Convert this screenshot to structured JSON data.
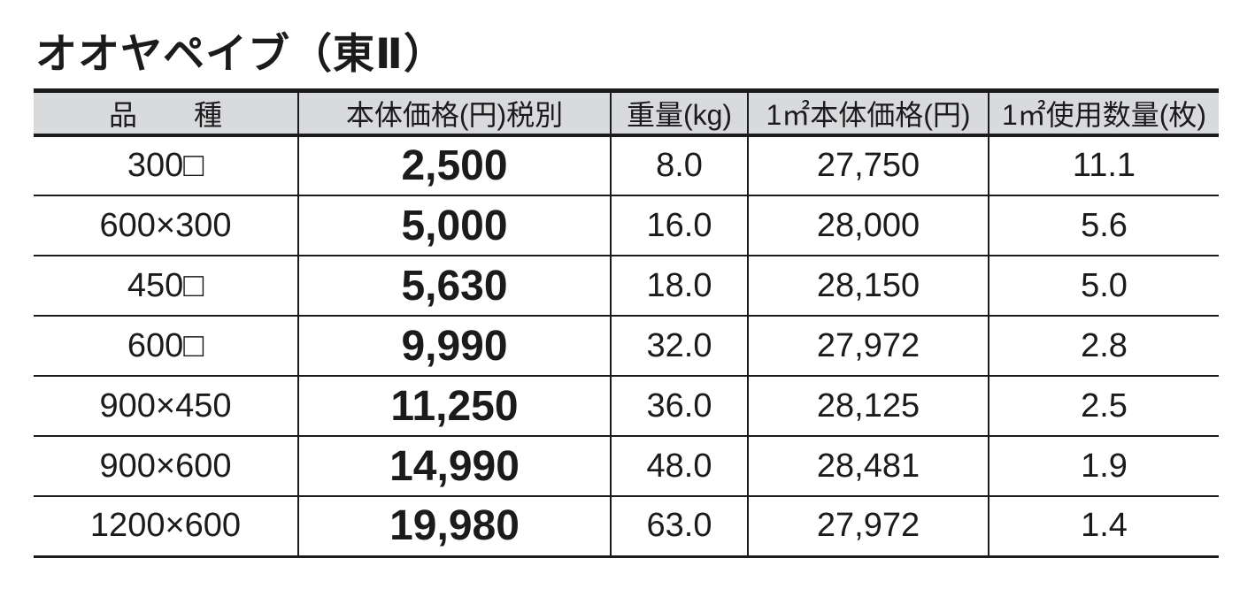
{
  "page": {
    "title": "オオヤペイブ（東Ⅱ）"
  },
  "table": {
    "headers": {
      "size": "品　　種",
      "price": "本体価格(円)税別",
      "weight": "重量(kg)",
      "unit_price": "1㎡本体価格(円)",
      "pieces": "1㎡使用数量(枚)"
    },
    "rows": [
      {
        "size": "300□",
        "price": "2,500",
        "weight": "8.0",
        "unit_price": "27,750",
        "pieces": "11.1"
      },
      {
        "size": "600×300",
        "price": "5,000",
        "weight": "16.0",
        "unit_price": "28,000",
        "pieces": "5.6"
      },
      {
        "size": "450□",
        "price": "5,630",
        "weight": "18.0",
        "unit_price": "28,150",
        "pieces": "5.0"
      },
      {
        "size": "600□",
        "price": "9,990",
        "weight": "32.0",
        "unit_price": "27,972",
        "pieces": "2.8"
      },
      {
        "size": "900×450",
        "price": "11,250",
        "weight": "36.0",
        "unit_price": "28,125",
        "pieces": "2.5"
      },
      {
        "size": "900×600",
        "price": "14,990",
        "weight": "48.0",
        "unit_price": "28,481",
        "pieces": "1.9"
      },
      {
        "size": "1200×600",
        "price": "19,980",
        "weight": "63.0",
        "unit_price": "27,972",
        "pieces": "1.4"
      }
    ]
  },
  "colors": {
    "text": "#1b1b1d",
    "header_background": "#d9dadb",
    "border": "#1b1b1d",
    "page_background": "#ffffff"
  }
}
